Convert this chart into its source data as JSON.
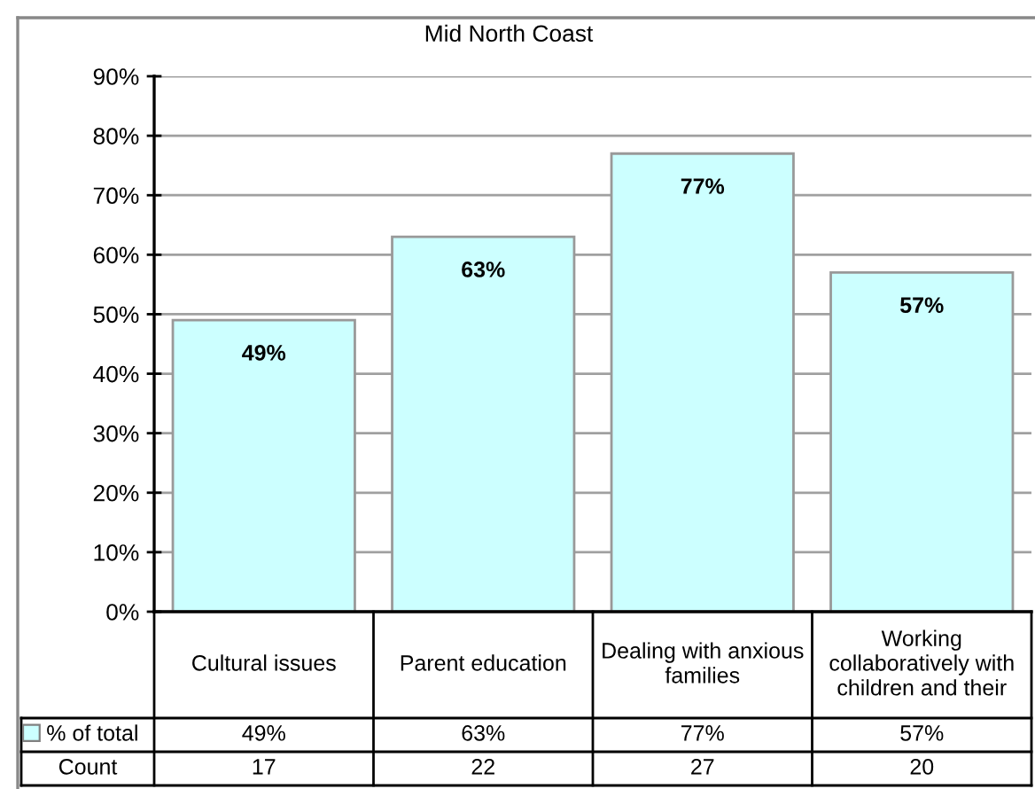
{
  "chart_data": {
    "type": "bar",
    "title": "Mid North Coast",
    "categories": [
      "Cultural issues",
      "Parent education",
      "Dealing with anxious families",
      "Working collaboratively with children and their"
    ],
    "series": [
      {
        "name": "% of total",
        "color": "#ccffff",
        "values": [
          49,
          63,
          77,
          57
        ],
        "value_labels": [
          "49%",
          "63%",
          "77%",
          "57%"
        ]
      }
    ],
    "annotations": [
      "Count",
      "17",
      "22",
      "27",
      "20"
    ],
    "ylim": [
      0,
      90
    ],
    "yticks": [
      {
        "value": 0,
        "label": "0%"
      },
      {
        "value": 10,
        "label": "10%"
      },
      {
        "value": 20,
        "label": "20%"
      },
      {
        "value": 30,
        "label": "30%"
      },
      {
        "value": 40,
        "label": "40%"
      },
      {
        "value": 50,
        "label": "50%"
      },
      {
        "value": 60,
        "label": "60%"
      },
      {
        "value": 70,
        "label": "70%"
      },
      {
        "value": 80,
        "label": "80%"
      },
      {
        "value": 90,
        "label": "90%"
      }
    ],
    "grid": "y",
    "legend": "bottom left"
  }
}
